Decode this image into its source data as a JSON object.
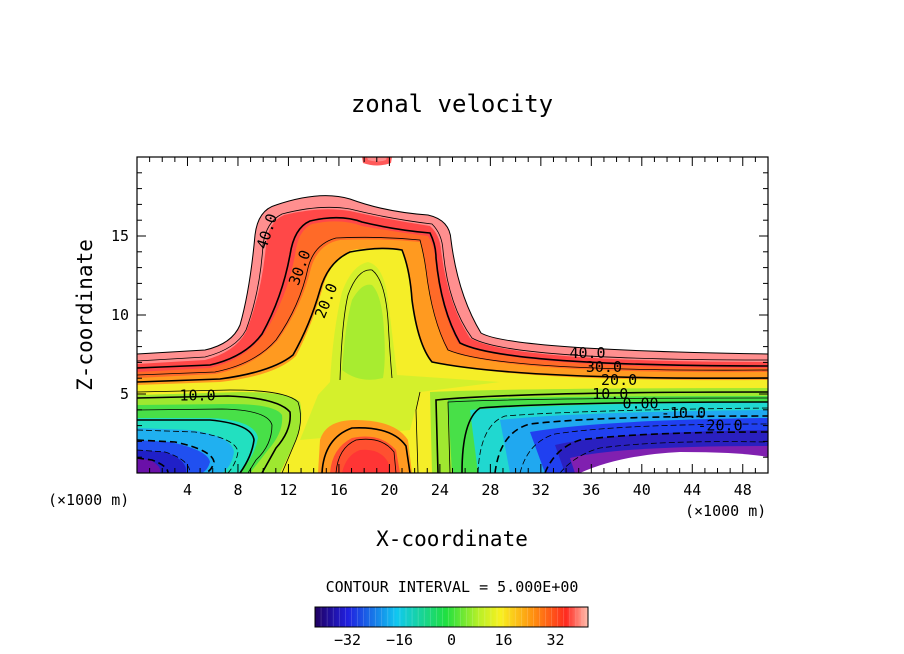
{
  "chart_data": {
    "type": "contour",
    "title": "zonal velocity",
    "xlabel": "X-coordinate",
    "ylabel": "Z-coordinate",
    "x_unit_left": "(×1000 m)",
    "x_unit_right": "(×1000 m)",
    "xlim": [
      0,
      50
    ],
    "ylim": [
      0,
      20
    ],
    "x_ticks": [
      "4",
      "8",
      "12",
      "16",
      "20",
      "24",
      "28",
      "32",
      "36",
      "40",
      "44",
      "48"
    ],
    "y_ticks": [
      "5",
      "10",
      "15"
    ],
    "contour_interval_text": "CONTOUR INTERVAL = 5.000E+00",
    "contour_interval": 5.0,
    "contour_labels": [
      {
        "text": "40.0",
        "x": 10.3,
        "y": 15.3
      },
      {
        "text": "30.0",
        "x": 12.9,
        "y": 13.0
      },
      {
        "text": "20.0",
        "x": 15.0,
        "y": 10.9
      },
      {
        "text": "10.0",
        "x": 4.8,
        "y": 4.9
      },
      {
        "text": "40.0",
        "x": 35.7,
        "y": 7.6
      },
      {
        "text": "30.0",
        "x": 37.0,
        "y": 6.7
      },
      {
        "text": "20.0",
        "x": 38.2,
        "y": 5.9
      },
      {
        "text": "10.0",
        "x": 37.5,
        "y": 5.0
      },
      {
        "text": "0.00",
        "x": 39.9,
        "y": 4.4
      },
      {
        "text": "-10.0",
        "x": 43.3,
        "y": 3.8
      },
      {
        "text": "-20.0",
        "x": 46.2,
        "y": 3.0
      }
    ],
    "colorbar": {
      "ticks": [
        "−32",
        "−16",
        "0",
        "16",
        "32"
      ],
      "tick_values": [
        -32,
        -16,
        0,
        16,
        32
      ],
      "range": [
        -42,
        42
      ]
    },
    "colors": {
      "red": "#ff4040",
      "orange": "#ff9a20",
      "yellow": "#f5f028",
      "green": "#28e050",
      "cyan": "#20f0f0",
      "blue": "#2030f0",
      "purple": "#6010a0"
    }
  }
}
